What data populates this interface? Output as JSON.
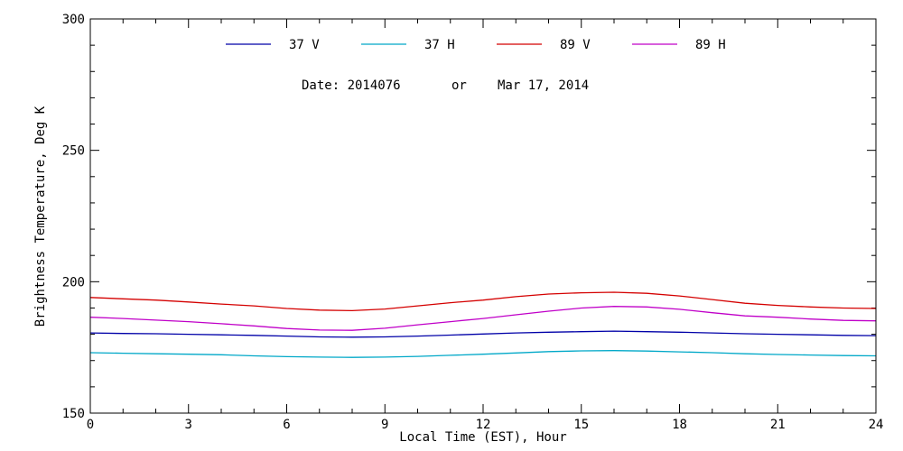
{
  "chart_data": {
    "type": "line",
    "xlabel": "Local Time (EST), Hour",
    "ylabel": "Brightness Temperature, Deg K",
    "xlim": [
      0,
      24
    ],
    "ylim": [
      150,
      300
    ],
    "xticks": [
      0,
      3,
      6,
      9,
      12,
      15,
      18,
      21,
      24
    ],
    "yticks": [
      150,
      200,
      250,
      300
    ],
    "x_minor_step": 1,
    "y_minor_step": 10,
    "grid": false,
    "legend_position": "top",
    "annotation": {
      "date_label": "Date: 2014076",
      "or_label": "or",
      "date_text": "Mar 17, 2014"
    },
    "series": [
      {
        "name": "37 V",
        "color": "#0000a8",
        "x": [
          0,
          1,
          2,
          3,
          4,
          5,
          6,
          7,
          8,
          9,
          10,
          11,
          12,
          13,
          14,
          15,
          16,
          17,
          18,
          19,
          20,
          21,
          22,
          23,
          24
        ],
        "y": [
          180.5,
          180.3,
          180.2,
          180,
          179.8,
          179.6,
          179.3,
          179,
          178.9,
          179,
          179.3,
          179.7,
          180.1,
          180.5,
          180.8,
          181,
          181.2,
          181,
          180.8,
          180.5,
          180.2,
          180,
          179.8,
          179.6,
          179.5
        ]
      },
      {
        "name": "37 H",
        "color": "#00a8c8",
        "x": [
          0,
          1,
          2,
          3,
          4,
          5,
          6,
          7,
          8,
          9,
          10,
          11,
          12,
          13,
          14,
          15,
          16,
          17,
          18,
          19,
          20,
          21,
          22,
          23,
          24
        ],
        "y": [
          173,
          172.8,
          172.6,
          172.4,
          172.2,
          171.8,
          171.5,
          171.3,
          171.2,
          171.3,
          171.6,
          172,
          172.4,
          172.9,
          173.4,
          173.7,
          173.8,
          173.6,
          173.3,
          173,
          172.6,
          172.3,
          172.1,
          171.9,
          171.8
        ]
      },
      {
        "name": "89 V",
        "color": "#d40000",
        "x": [
          0,
          1,
          2,
          3,
          4,
          5,
          6,
          7,
          8,
          9,
          10,
          11,
          12,
          13,
          14,
          15,
          16,
          17,
          18,
          19,
          20,
          21,
          22,
          23,
          24
        ],
        "y": [
          194,
          193.5,
          193,
          192.3,
          191.5,
          190.8,
          189.8,
          189.2,
          189,
          189.6,
          190.8,
          192,
          193,
          194.3,
          195.3,
          195.8,
          196,
          195.6,
          194.6,
          193.2,
          191.8,
          191,
          190.4,
          190,
          189.8
        ]
      },
      {
        "name": "89 H",
        "color": "#c000c8",
        "x": [
          0,
          1,
          2,
          3,
          4,
          5,
          6,
          7,
          8,
          9,
          10,
          11,
          12,
          13,
          14,
          15,
          16,
          17,
          18,
          19,
          20,
          21,
          22,
          23,
          24
        ],
        "y": [
          186.5,
          186,
          185.4,
          184.8,
          184,
          183.2,
          182.2,
          181.6,
          181.5,
          182.3,
          183.6,
          184.8,
          186,
          187.4,
          188.8,
          190,
          190.6,
          190.4,
          189.5,
          188.2,
          187,
          186.5,
          185.8,
          185.3,
          185.1
        ]
      }
    ]
  }
}
